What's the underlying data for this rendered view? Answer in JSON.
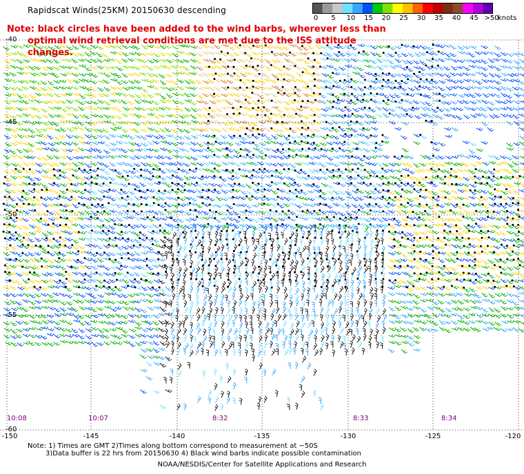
{
  "title": "Rapidscat Winds(25KM) 20150630 descending",
  "note_line1": "Note: black circles have been added to the wind barbs, wherever less than",
  "note_line2": "optimal wind retrieval conditions are met due to the ISS attitude changes.",
  "colorbar": {
    "labels": [
      "0",
      "5",
      "10",
      "15",
      "20",
      "25",
      "30",
      "35",
      "40",
      "45",
      ">50"
    ],
    "unit": "knots",
    "colors": [
      "#555555",
      "#9a9a9a",
      "#c8c8c8",
      "#6fe0ff",
      "#34a8ff",
      "#0050ff",
      "#00c800",
      "#7fe000",
      "#ffff00",
      "#ffc000",
      "#ff6000",
      "#ff0000",
      "#c00000",
      "#7a3010",
      "#8a4a30",
      "#ff00ff",
      "#b000e0",
      "#6000b0"
    ]
  },
  "axes": {
    "lon_labels": [
      "-150",
      "-145",
      "-140",
      "-135",
      "-130",
      "-125",
      "-120"
    ],
    "lat_labels": [
      "-40",
      "-45",
      "-50",
      "-55",
      "-60"
    ]
  },
  "times": [
    "10:08",
    "10:07",
    "8:32",
    "8:33",
    "8:34"
  ],
  "footer": {
    "line1": "Note: 1) Times are GMT 2)Times along bottom correspond to measurement at ~50S",
    "line2": "3)Data buffer is 22 hrs from 20150630 4) Black wind barbs indicate possible contamination",
    "line3": "NOAA/NESDIS/Center for Satellite Applications and Research"
  }
}
